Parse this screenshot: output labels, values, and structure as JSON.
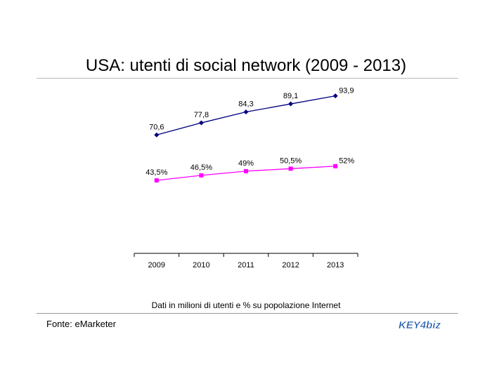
{
  "title": "USA: utenti di social network (2009 - 2013)",
  "caption": "Dati in milioni di utenti e % su popolazione Internet",
  "source": "Fonte: eMarketer",
  "logo_text": "KEY4biz",
  "colors": {
    "users_series": "#000080",
    "share_series": "#ff00ff",
    "axis": "#000000",
    "logo_blue": "#1f5aa8"
  },
  "chart_data": {
    "type": "line",
    "categories": [
      "2009",
      "2010",
      "2011",
      "2012",
      "2013"
    ],
    "series": [
      {
        "values": [
          70.6,
          77.8,
          84.3,
          89.1,
          93.9
        ],
        "labels": [
          "70,6",
          "77,8",
          "84,3",
          "89,1",
          "93,9"
        ],
        "marker": "diamond",
        "color": "#000080"
      },
      {
        "values": [
          43.5,
          46.5,
          49,
          50.5,
          52
        ],
        "labels": [
          "43,5%",
          "46,5%",
          "49%",
          "50,5%",
          "52%"
        ],
        "marker": "square",
        "color": "#ff00ff"
      }
    ],
    "ylim": [
      0,
      100
    ],
    "grid": false,
    "legend": "none"
  }
}
